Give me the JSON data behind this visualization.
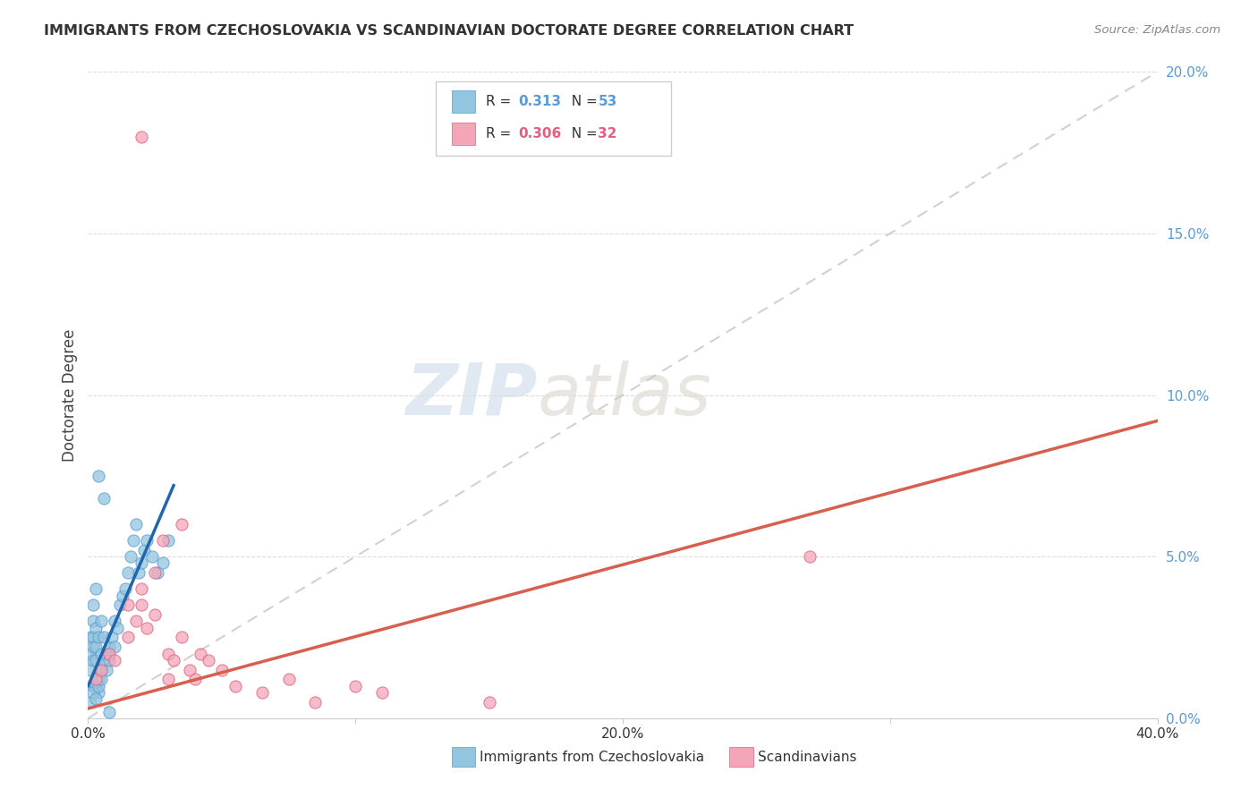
{
  "title": "IMMIGRANTS FROM CZECHOSLOVAKIA VS SCANDINAVIAN DOCTORATE DEGREE CORRELATION CHART",
  "source": "Source: ZipAtlas.com",
  "ylabel": "Doctorate Degree",
  "xlim": [
    0.0,
    0.4
  ],
  "ylim": [
    0.0,
    0.2
  ],
  "xticks": [
    0.0,
    0.1,
    0.2,
    0.3,
    0.4
  ],
  "yticks": [
    0.0,
    0.05,
    0.1,
    0.15,
    0.2
  ],
  "xticklabels": [
    "0.0%",
    "",
    "20.0%",
    "",
    "40.0%"
  ],
  "yticklabels": [
    "0.0%",
    "5.0%",
    "10.0%",
    "15.0%",
    "20.0%"
  ],
  "blue_color": "#92c5de",
  "blue_edge_color": "#5b9bd5",
  "pink_color": "#f4a6b8",
  "pink_edge_color": "#e06080",
  "blue_line_color": "#2166ac",
  "pink_line_color": "#d6604d",
  "ref_line_color": "#cccccc",
  "watermark_color": "#ddeeff",
  "blue_label": "Immigrants from Czechoslovakia",
  "pink_label": "Scandinavians",
  "r_blue": "0.313",
  "n_blue": "53",
  "r_pink": "0.306",
  "n_pink": "32",
  "blue_x": [
    0.001,
    0.001,
    0.001,
    0.002,
    0.002,
    0.002,
    0.002,
    0.002,
    0.003,
    0.003,
    0.003,
    0.003,
    0.004,
    0.004,
    0.004,
    0.005,
    0.005,
    0.005,
    0.006,
    0.006,
    0.007,
    0.007,
    0.008,
    0.008,
    0.009,
    0.01,
    0.01,
    0.011,
    0.012,
    0.013,
    0.014,
    0.015,
    0.016,
    0.017,
    0.018,
    0.019,
    0.02,
    0.021,
    0.022,
    0.024,
    0.026,
    0.028,
    0.03,
    0.001,
    0.002,
    0.003,
    0.004,
    0.005,
    0.002,
    0.003,
    0.004,
    0.006,
    0.008
  ],
  "blue_y": [
    0.02,
    0.025,
    0.015,
    0.03,
    0.025,
    0.018,
    0.022,
    0.01,
    0.028,
    0.022,
    0.018,
    0.01,
    0.025,
    0.012,
    0.008,
    0.03,
    0.02,
    0.015,
    0.025,
    0.018,
    0.02,
    0.015,
    0.022,
    0.018,
    0.025,
    0.03,
    0.022,
    0.028,
    0.035,
    0.038,
    0.04,
    0.045,
    0.05,
    0.055,
    0.06,
    0.045,
    0.048,
    0.052,
    0.055,
    0.05,
    0.045,
    0.048,
    0.055,
    0.005,
    0.008,
    0.006,
    0.01,
    0.012,
    0.035,
    0.04,
    0.075,
    0.068,
    0.002
  ],
  "pink_x": [
    0.02,
    0.003,
    0.005,
    0.008,
    0.01,
    0.015,
    0.018,
    0.02,
    0.022,
    0.025,
    0.03,
    0.032,
    0.035,
    0.038,
    0.04,
    0.042,
    0.045,
    0.05,
    0.055,
    0.065,
    0.075,
    0.085,
    0.1,
    0.11,
    0.15,
    0.015,
    0.02,
    0.025,
    0.028,
    0.035,
    0.27,
    0.03
  ],
  "pink_y": [
    0.18,
    0.012,
    0.015,
    0.02,
    0.018,
    0.025,
    0.03,
    0.035,
    0.028,
    0.032,
    0.02,
    0.018,
    0.025,
    0.015,
    0.012,
    0.02,
    0.018,
    0.015,
    0.01,
    0.008,
    0.012,
    0.005,
    0.01,
    0.008,
    0.005,
    0.035,
    0.04,
    0.045,
    0.055,
    0.06,
    0.05,
    0.012
  ]
}
